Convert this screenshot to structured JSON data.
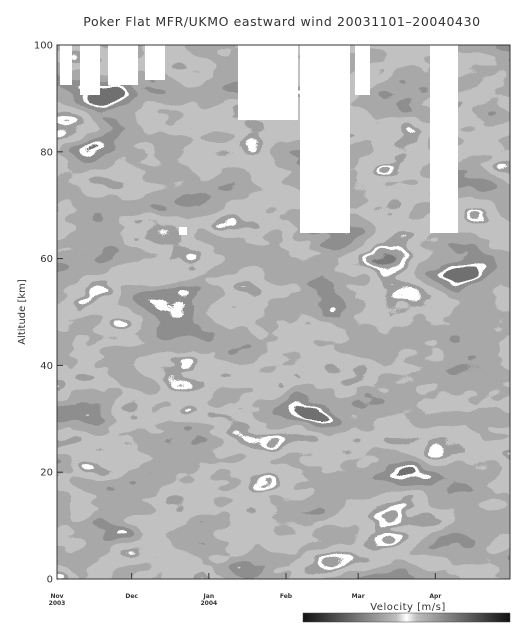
{
  "chart_data": {
    "type": "heatmap",
    "title": "Poker Flat MFR/UKMO eastward wind  20031101–20040430",
    "xlabel": "",
    "ylabel": "Altitude [km]",
    "xlim": [
      0,
      182
    ],
    "ylim": [
      0,
      100
    ],
    "y_ticks": [
      0,
      20,
      40,
      60,
      80,
      100
    ],
    "x_ticks": [
      {
        "day": 0,
        "label": "Nov",
        "sub": "2003"
      },
      {
        "day": 30,
        "label": "Dec",
        "sub": ""
      },
      {
        "day": 61,
        "label": "Jan",
        "sub": "2004"
      },
      {
        "day": 92,
        "label": "Feb",
        "sub": ""
      },
      {
        "day": 121,
        "label": "Mar",
        "sub": ""
      },
      {
        "day": 152,
        "label": "Apr",
        "sub": ""
      }
    ],
    "colorbar": {
      "label": "Velocity [m/s]"
    },
    "colors": {
      "contour": "#ffffff",
      "frame": "#333333",
      "missing": "#ffffff"
    }
  }
}
